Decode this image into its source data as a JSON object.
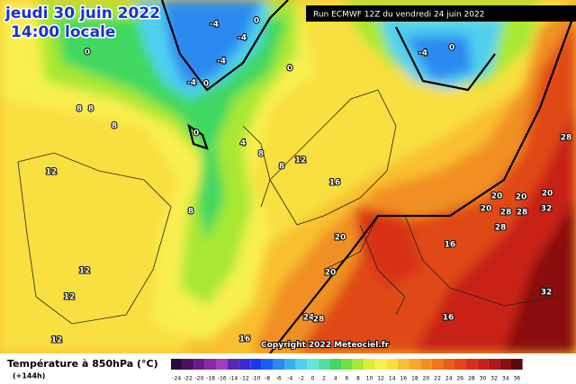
{
  "header": {
    "date": "jeudi 30 juin 2022",
    "time": "14:00 locale",
    "run": "Run ECMWF 12Z du vendredi 24 juin 2022"
  },
  "copyright": "Copyright 2022 Meteociel.fr",
  "legend": {
    "title": "Température à 850hPa (°C)",
    "lead": "(+144h)",
    "ticks": [
      -24,
      -22,
      -20,
      -18,
      -16,
      -14,
      -12,
      -10,
      -8,
      -6,
      -4,
      -2,
      0,
      2,
      4,
      6,
      8,
      10,
      12,
      14,
      16,
      18,
      20,
      22,
      24,
      26,
      28,
      30,
      32,
      34,
      36
    ],
    "colors": [
      "#2a0a3a",
      "#4a1060",
      "#6a1a8a",
      "#8a2aa8",
      "#a03cc0",
      "#5a28b0",
      "#3a2ad0",
      "#1a3ae8",
      "#1a60f0",
      "#2a8af0",
      "#3ab0f0",
      "#50d0f0",
      "#60e8d8",
      "#50e0a0",
      "#40d860",
      "#70e040",
      "#a8e830",
      "#d8f030",
      "#f8f050",
      "#f8e040",
      "#f8c030",
      "#f8a828",
      "#f09020",
      "#f07818",
      "#e86018",
      "#e04818",
      "#d83018",
      "#c82018",
      "#b01818",
      "#8a1010",
      "#5a0808"
    ]
  },
  "contour_labels": [
    "0",
    "-4",
    "-4",
    "-4",
    "-4",
    "0",
    "0",
    "8",
    "8",
    "8",
    "0",
    "4",
    "8",
    "8",
    "12",
    "8",
    "12",
    "16",
    "20",
    "16",
    "20",
    "24",
    "28",
    "16",
    "16",
    "12",
    "12",
    "12",
    "-4",
    "0",
    "20",
    "20",
    "20",
    "28",
    "28",
    "32",
    "28",
    "28",
    "32",
    "20",
    "0"
  ]
}
